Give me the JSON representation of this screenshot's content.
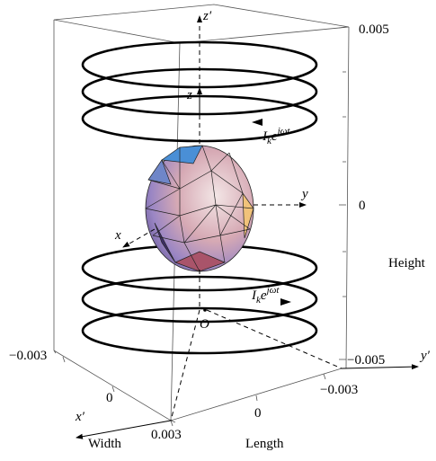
{
  "axes": {
    "z_prime": "z′",
    "z": "z",
    "y": "y",
    "x": "x",
    "y_prime": "y′",
    "x_prime": "x′",
    "origin": "O"
  },
  "current_labels": [
    {
      "main": "I",
      "sub": "k",
      "base": "e",
      "sup": "jωt"
    },
    {
      "main": "I",
      "sub": "k",
      "base": "e",
      "sup": "jωt"
    }
  ],
  "height_axis": {
    "title": "Height",
    "ticks": [
      "0.005",
      "0",
      "−0.005"
    ]
  },
  "width_axis": {
    "title": "Width",
    "ticks": [
      "−0.003",
      "0",
      "0.003"
    ]
  },
  "length_axis": {
    "title": "Length",
    "ticks": [
      "0",
      "−0.003"
    ]
  }
}
